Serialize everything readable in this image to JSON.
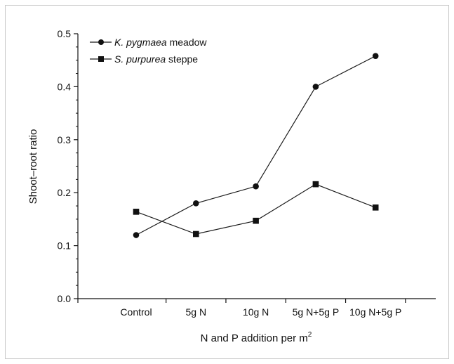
{
  "chart_data": {
    "type": "line",
    "categories": [
      "Control",
      "5g N",
      "10g N",
      "5g N+5g P",
      "10g N+5g P"
    ],
    "series": [
      {
        "name_italic": "K. pygmaea",
        "name_rest": " meadow",
        "marker": "circle",
        "color": "#1a1a1a",
        "values": [
          0.12,
          0.18,
          0.212,
          0.4,
          0.458
        ]
      },
      {
        "name_italic": "S. purpurea",
        "name_rest": " steppe",
        "marker": "square",
        "color": "#1a1a1a",
        "values": [
          0.164,
          0.122,
          0.147,
          0.216,
          0.172
        ]
      }
    ],
    "xlabel": "N and P addition per m",
    "xlabel_sup": "2",
    "ylabel": "Shoot–root ratio",
    "ylim": [
      0,
      0.5
    ],
    "yticks": [
      "0.0",
      "0.1",
      "0.2",
      "0.3",
      "0.4",
      "0.5"
    ],
    "yticks_values": [
      0,
      0.1,
      0.2,
      0.3,
      0.4,
      0.5
    ],
    "grid": false,
    "legend_position": "top-left"
  }
}
